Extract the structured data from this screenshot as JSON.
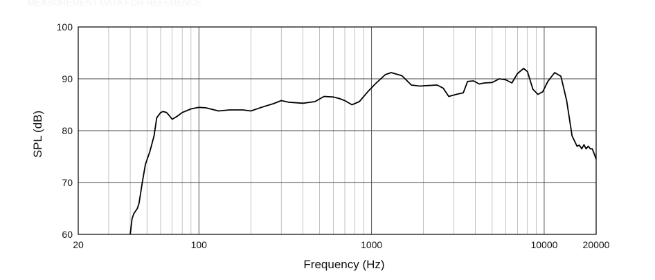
{
  "chart_data": {
    "type": "line",
    "title": "",
    "xlabel": "Frequency (Hz)",
    "ylabel": "SPL (dB)",
    "x_scale": "log",
    "xlim": [
      20,
      20000
    ],
    "ylim": [
      60,
      100
    ],
    "x_ticks": [
      20,
      100,
      1000,
      10000,
      20000
    ],
    "x_tick_labels": [
      "20",
      "100",
      "1000",
      "10000",
      "20000"
    ],
    "y_ticks": [
      60,
      70,
      80,
      90,
      100
    ],
    "y_tick_labels": [
      "60",
      "70",
      "80",
      "90",
      "100"
    ],
    "grid": true,
    "series": [
      {
        "color": "#000000",
        "x": [
          40,
          41,
          42,
          44,
          45,
          47,
          49,
          52,
          55,
          57,
          60,
          62,
          65,
          67,
          70,
          75,
          80,
          90,
          100,
          110,
          130,
          150,
          180,
          200,
          230,
          270,
          300,
          330,
          400,
          470,
          530,
          600,
          650,
          700,
          770,
          850,
          950,
          1050,
          1200,
          1300,
          1500,
          1700,
          1900,
          2100,
          2400,
          2600,
          2800,
          3100,
          3400,
          3600,
          3900,
          4200,
          4500,
          5000,
          5500,
          6000,
          6500,
          7000,
          7600,
          8000,
          8600,
          9200,
          9800,
          10500,
          11500,
          12500,
          13500,
          14500,
          15500,
          16000,
          16500,
          17000,
          17500,
          18000,
          18500,
          19000,
          19500,
          20000
        ],
        "y": [
          60,
          63,
          64,
          65,
          66,
          70,
          73.5,
          76,
          79,
          82.5,
          83.5,
          83.7,
          83.5,
          83,
          82.2,
          82.8,
          83.5,
          84.2,
          84.5,
          84.4,
          83.8,
          84,
          84,
          83.8,
          84.5,
          85.2,
          85.8,
          85.5,
          85.3,
          85.6,
          86.6,
          86.5,
          86.2,
          85.8,
          85,
          85.6,
          87.5,
          89,
          90.8,
          91.2,
          90.6,
          88.8,
          88.6,
          88.7,
          88.8,
          88.2,
          86.6,
          87,
          87.3,
          89.5,
          89.6,
          89,
          89.2,
          89.3,
          90,
          89.8,
          89.2,
          91,
          92,
          91.4,
          88,
          87,
          87.5,
          89.5,
          91.2,
          90.5,
          85.8,
          79,
          77,
          77.2,
          76.5,
          77.3,
          76.5,
          77,
          76.5,
          76.5,
          75.5,
          74.5
        ]
      }
    ]
  },
  "watermark_text": "MEASUREMENT DATA FOR REFERENCE"
}
